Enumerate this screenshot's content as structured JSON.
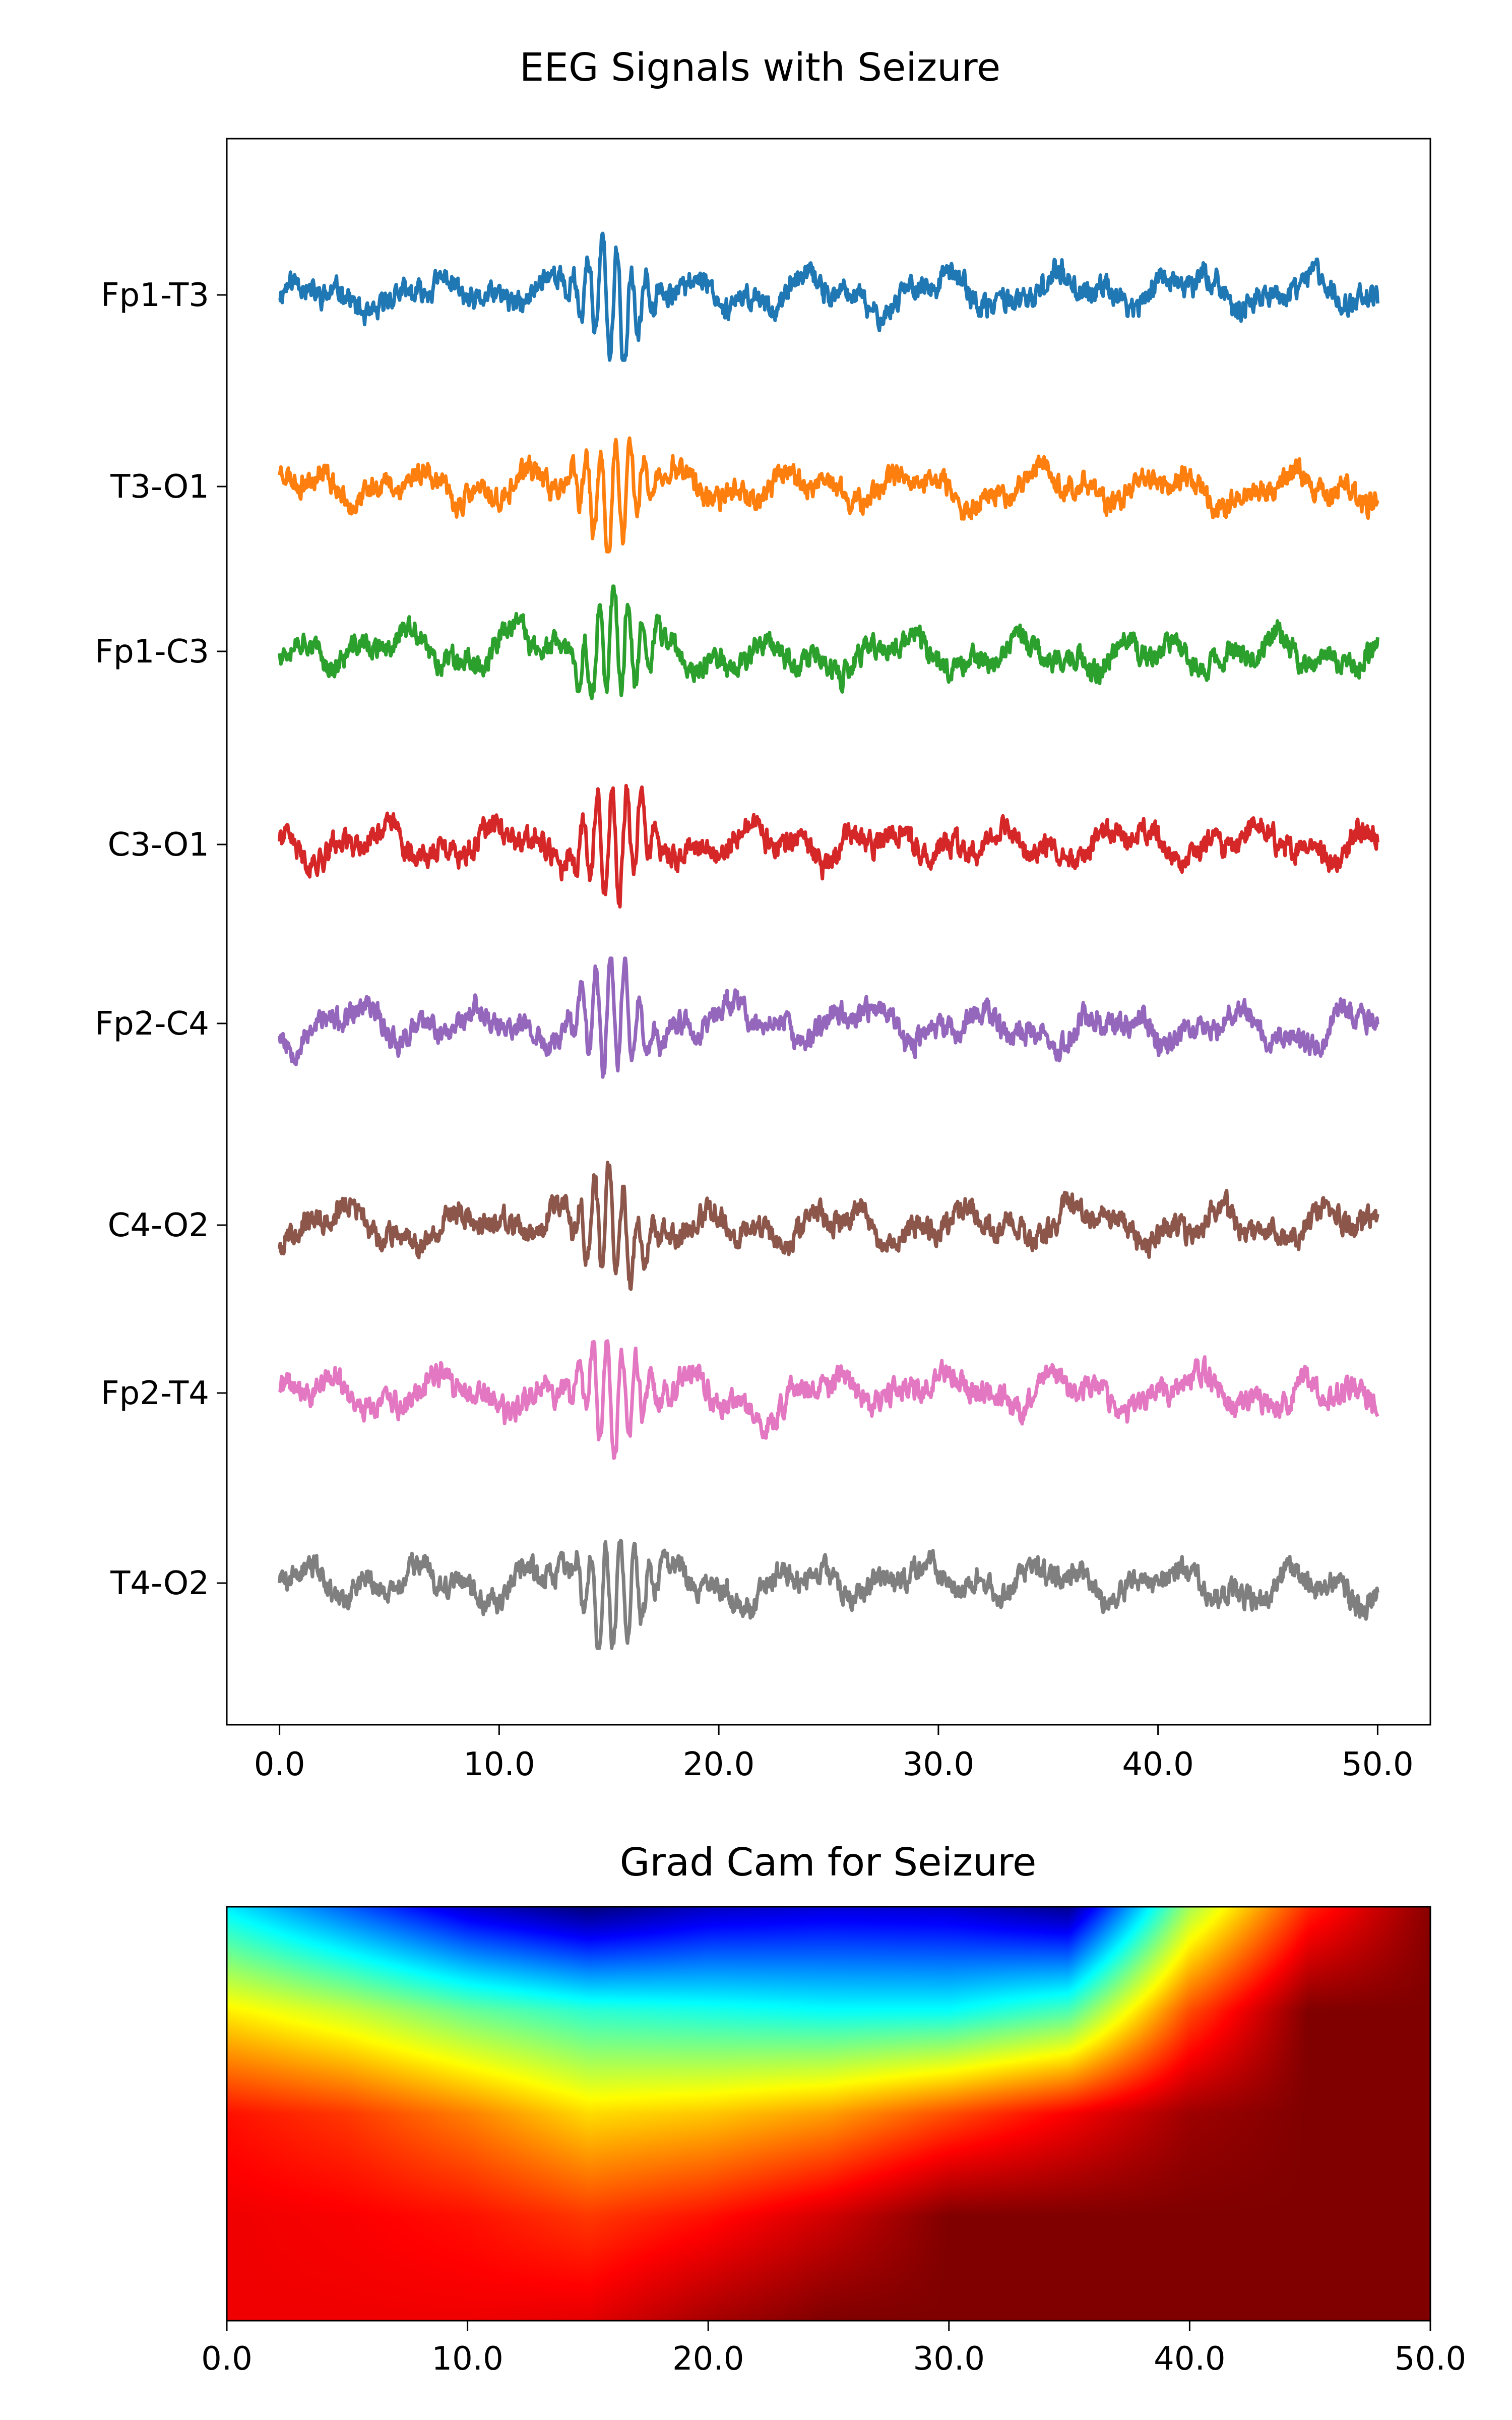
{
  "chart_data": [
    {
      "type": "line",
      "title": "EEG Signals with Seizure",
      "xlabel": "",
      "ylabel": "",
      "xlim": [
        -2.4,
        52.4
      ],
      "x_ticks": [
        0,
        10,
        20,
        30,
        40,
        50
      ],
      "x_tick_labels": [
        "0.0",
        "10.0",
        "20.0",
        "30.0",
        "40.0",
        "50.0"
      ],
      "seizure_burst_center": 15.2,
      "channels": [
        {
          "name": "Fp1-T3",
          "color": "#1f77b4",
          "seed": 11
        },
        {
          "name": "T3-O1",
          "color": "#ff7f0e",
          "seed": 23
        },
        {
          "name": "Fp1-C3",
          "color": "#2ca02c",
          "seed": 37
        },
        {
          "name": "C3-O1",
          "color": "#d62728",
          "seed": 41
        },
        {
          "name": "Fp2-C4",
          "color": "#9467bd",
          "seed": 53
        },
        {
          "name": "C4-O2",
          "color": "#8c564b",
          "seed": 67
        },
        {
          "name": "Fp2-T4",
          "color": "#e377c2",
          "seed": 71
        },
        {
          "name": "T4-O2",
          "color": "#7f7f7f",
          "seed": 89
        }
      ]
    },
    {
      "type": "heatmap",
      "title": "Grad Cam for Seizure",
      "colormap": "jet",
      "xlim": [
        0,
        50
      ],
      "x_ticks": [
        0,
        10,
        20,
        30,
        40,
        50
      ],
      "x_tick_labels": [
        "0.0",
        "10.0",
        "20.0",
        "30.0",
        "40.0",
        "50.0"
      ],
      "x_columns": [
        0,
        5,
        10,
        15,
        20,
        25,
        30,
        35,
        40,
        45,
        50
      ],
      "rows": [
        [
          0.36,
          0.22,
          0.08,
          0.0,
          0.07,
          0.09,
          0.08,
          0.02,
          0.54,
          0.84,
          0.99
        ],
        [
          0.64,
          0.57,
          0.48,
          0.42,
          0.4,
          0.38,
          0.38,
          0.45,
          0.8,
          1.0,
          1.0
        ],
        [
          0.86,
          0.82,
          0.75,
          0.66,
          0.68,
          0.72,
          0.8,
          0.88,
          0.97,
          1.0,
          1.0
        ],
        [
          0.89,
          0.88,
          0.86,
          0.82,
          0.86,
          0.92,
          1.0,
          1.0,
          1.0,
          1.0,
          1.0
        ],
        [
          0.89,
          0.89,
          0.89,
          0.9,
          0.96,
          1.0,
          1.0,
          1.0,
          1.0,
          1.0,
          1.0
        ]
      ]
    }
  ]
}
